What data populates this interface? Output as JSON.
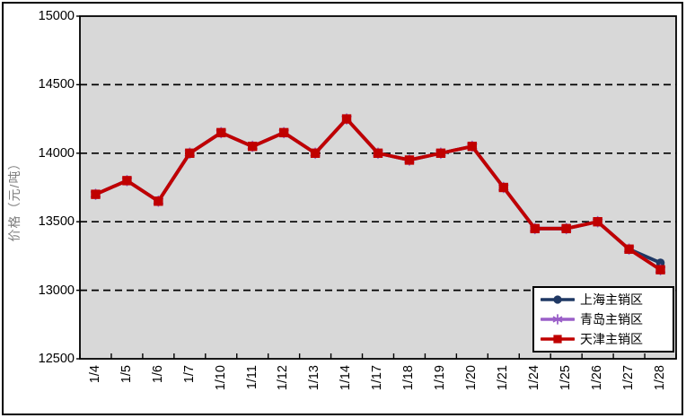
{
  "chart_data": {
    "type": "line",
    "title": "",
    "ylabel": "价格（元/吨）",
    "xlabel": "",
    "x_categories": [
      "1/4",
      "1/5",
      "1/6",
      "1/7",
      "1/10",
      "1/11",
      "1/12",
      "1/13",
      "1/14",
      "1/17",
      "1/18",
      "1/19",
      "1/20",
      "1/21",
      "1/24",
      "1/25",
      "1/26",
      "1/27",
      "1/28"
    ],
    "ylim": [
      12500,
      15000
    ],
    "y_ticks": [
      12500,
      13000,
      13500,
      14000,
      14500,
      15000
    ],
    "grid": "horizontal-dashed-black",
    "legend_position": "inside-bottom-right",
    "plot_bg": "#d8d8d8",
    "outer_bg": "#ffffff",
    "border_color": "#000000",
    "axis_text_color": "#000000",
    "ylabel_color": "#808080",
    "series": [
      {
        "name": "上海主销区",
        "color": "#1f3864",
        "marker": "circle",
        "values": [
          13700,
          13800,
          13650,
          14000,
          14150,
          14050,
          14150,
          14000,
          14250,
          14000,
          13950,
          14000,
          14050,
          13750,
          13450,
          13450,
          13500,
          13300,
          13200
        ]
      },
      {
        "name": "青岛主销区",
        "color": "#9a5fc8",
        "marker": "asterisk",
        "values": [
          13700,
          13800,
          13650,
          14000,
          14150,
          14050,
          14150,
          14000,
          14250,
          14000,
          13950,
          14000,
          14050,
          13750,
          13450,
          13450,
          13500,
          13300,
          13150
        ]
      },
      {
        "name": "天津主销区",
        "color": "#c00000",
        "marker": "square",
        "values": [
          13700,
          13800,
          13650,
          14000,
          14150,
          14050,
          14150,
          14000,
          14250,
          14000,
          13950,
          14000,
          14050,
          13750,
          13450,
          13450,
          13500,
          13300,
          13150
        ]
      }
    ]
  }
}
